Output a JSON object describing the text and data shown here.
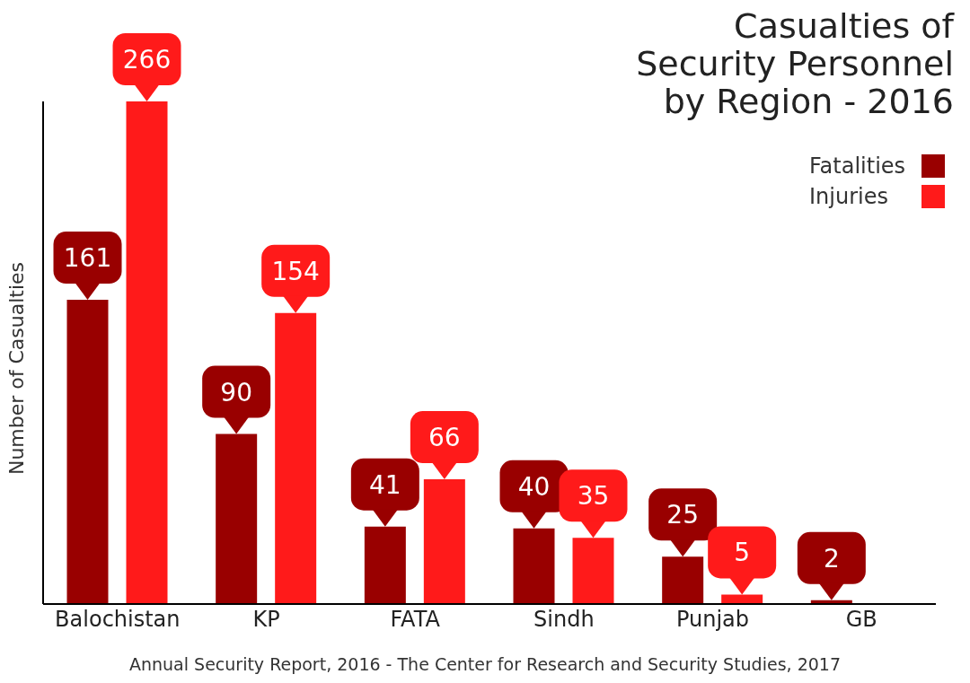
{
  "chart_data": {
    "type": "bar",
    "title": "Casualties of\nSecurity Personnel\nby Region - 2016",
    "ylabel": "Number of Casualties",
    "categories": [
      "Balochistan",
      "KP",
      "FATA",
      "Sindh",
      "Punjab",
      "GB"
    ],
    "series": [
      {
        "name": "Fatalities",
        "color": "#990000",
        "values": [
          161,
          90,
          41,
          40,
          25,
          2
        ]
      },
      {
        "name": "Injuries",
        "color": "#ff1a1a",
        "values": [
          266,
          154,
          66,
          35,
          5,
          null
        ]
      }
    ],
    "data_labels": true,
    "legend": "top right",
    "grid": false,
    "annotations": [
      "Annual Security Report, 2016 - The Center for Research and Security Studies, 2017"
    ]
  }
}
